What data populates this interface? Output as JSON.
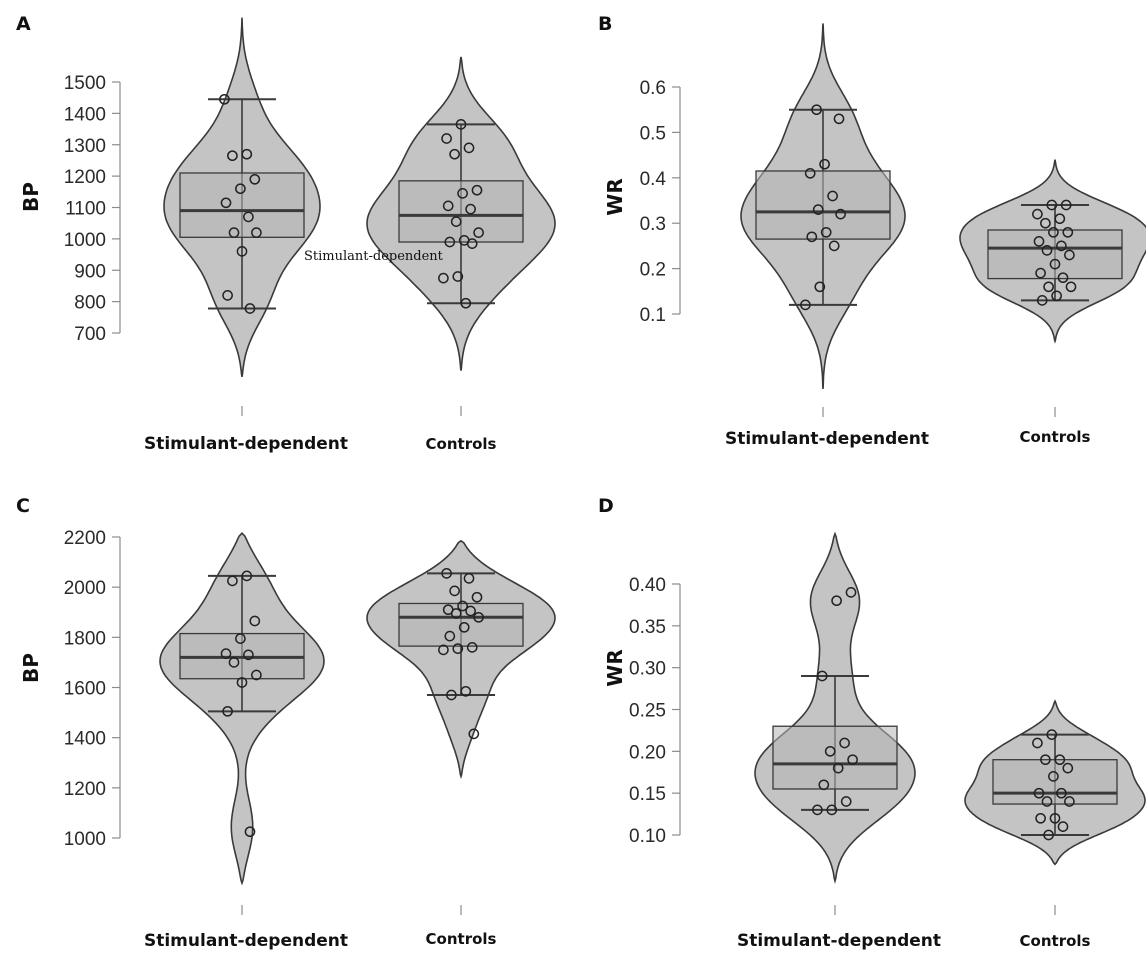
{
  "chart_data": [
    {
      "panel": "A",
      "type": "violin",
      "ylabel": "BP",
      "yticks": [
        700,
        800,
        900,
        1000,
        1100,
        1200,
        1300,
        1400,
        1500
      ],
      "categories": [
        "Stimulant-dependent",
        "Controls"
      ],
      "stray_label": "Stimulant-dependent",
      "groups": [
        {
          "name": "Stimulant-dependent",
          "q1": 1005,
          "median": 1090,
          "q3": 1210,
          "whisker_low": 778,
          "whisker_high": 1445,
          "kde_min": 560,
          "kde_max": 1705,
          "points": [
            1445,
            1270,
            1265,
            1190,
            1160,
            1115,
            1070,
            1020,
            1020,
            960,
            820,
            778
          ]
        },
        {
          "name": "Controls",
          "q1": 990,
          "median": 1075,
          "q3": 1185,
          "whisker_low": 795,
          "whisker_high": 1365,
          "kde_min": 580,
          "kde_max": 1580,
          "points": [
            1365,
            1320,
            1290,
            1270,
            1155,
            1145,
            1105,
            1095,
            1055,
            1020,
            995,
            990,
            985,
            880,
            875,
            795
          ]
        }
      ]
    },
    {
      "panel": "B",
      "type": "violin",
      "ylabel": "WR",
      "yticks": [
        "0.1",
        "0.2",
        "0.3",
        "0.4",
        "0.5",
        "0.6"
      ],
      "categories": [
        "Stimulant-dependent",
        "Controls"
      ],
      "groups": [
        {
          "name": "Stimulant-dependent",
          "q1": 0.265,
          "median": 0.325,
          "q3": 0.415,
          "whisker_low": 0.12,
          "whisker_high": 0.55,
          "kde_min": -0.065,
          "kde_max": 0.74,
          "points": [
            0.55,
            0.53,
            0.43,
            0.41,
            0.36,
            0.33,
            0.32,
            0.28,
            0.27,
            0.25,
            0.16,
            0.12
          ]
        },
        {
          "name": "Controls",
          "q1": 0.178,
          "median": 0.245,
          "q3": 0.285,
          "whisker_low": 0.13,
          "whisker_high": 0.34,
          "kde_min": 0.04,
          "kde_max": 0.44,
          "points": [
            0.34,
            0.34,
            0.32,
            0.31,
            0.3,
            0.28,
            0.28,
            0.26,
            0.25,
            0.24,
            0.23,
            0.21,
            0.19,
            0.18,
            0.16,
            0.16,
            0.14,
            0.13
          ]
        }
      ]
    },
    {
      "panel": "C",
      "type": "violin",
      "ylabel": "BP",
      "yticks": [
        1000,
        1200,
        1400,
        1600,
        1800,
        2000,
        2200
      ],
      "categories": [
        "Stimulant-dependent",
        "Controls"
      ],
      "groups": [
        {
          "name": "Stimulant-dependent",
          "q1": 1635,
          "median": 1720,
          "q3": 1815,
          "whisker_low": 1505,
          "whisker_high": 2045,
          "kde_min": 820,
          "kde_max": 2215,
          "points": [
            2045,
            2025,
            1865,
            1795,
            1735,
            1730,
            1700,
            1650,
            1620,
            1505,
            1025
          ]
        },
        {
          "name": "Controls",
          "q1": 1765,
          "median": 1880,
          "q3": 1935,
          "whisker_low": 1570,
          "whisker_high": 2055,
          "kde_min": 1245,
          "kde_max": 2185,
          "points": [
            2055,
            2035,
            1985,
            1960,
            1925,
            1910,
            1905,
            1895,
            1880,
            1840,
            1805,
            1760,
            1755,
            1750,
            1585,
            1570,
            1415
          ]
        }
      ]
    },
    {
      "panel": "D",
      "type": "violin",
      "ylabel": "WR",
      "yticks": [
        "0.10",
        "0.15",
        "0.20",
        "0.25",
        "0.30",
        "0.35",
        "0.40"
      ],
      "categories": [
        "Stimulant-dependent",
        "Controls"
      ],
      "groups": [
        {
          "name": "Stimulant-dependent",
          "q1": 0.155,
          "median": 0.185,
          "q3": 0.23,
          "whisker_low": 0.13,
          "whisker_high": 0.29,
          "kde_min": 0.045,
          "kde_max": 0.46,
          "points": [
            0.39,
            0.38,
            0.29,
            0.21,
            0.2,
            0.19,
            0.18,
            0.16,
            0.14,
            0.13,
            0.13
          ]
        },
        {
          "name": "Controls",
          "q1": 0.137,
          "median": 0.15,
          "q3": 0.19,
          "whisker_low": 0.1,
          "whisker_high": 0.22,
          "kde_min": 0.065,
          "kde_max": 0.26,
          "points": [
            0.22,
            0.21,
            0.19,
            0.19,
            0.18,
            0.17,
            0.15,
            0.15,
            0.14,
            0.14,
            0.12,
            0.12,
            0.11,
            0.1
          ]
        }
      ]
    }
  ],
  "colors": {
    "violin_fill": "#c4c4c4",
    "outline": "#3a3a3a",
    "box_fill": "#b5b5b5",
    "axis": "#8c8c8c"
  }
}
